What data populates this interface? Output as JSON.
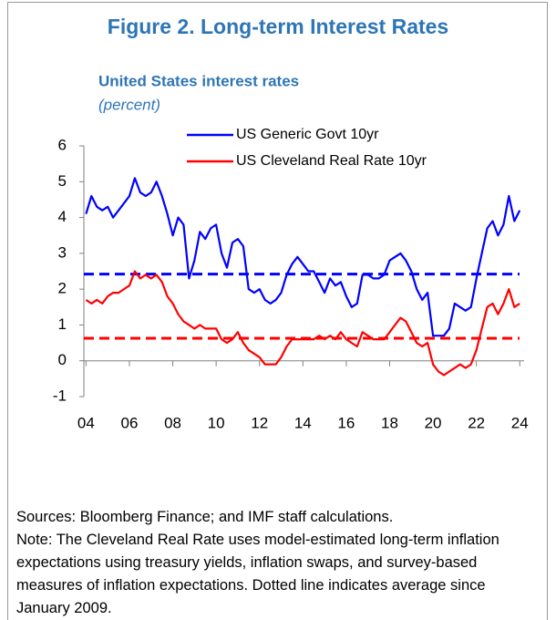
{
  "chart_data": {
    "type": "line",
    "title": "Figure 2. Long-term Interest Rates",
    "subtitle": "United States interest rates",
    "unit": "(percent)",
    "x": [
      2004,
      2004.25,
      2004.5,
      2004.75,
      2005,
      2005.25,
      2005.5,
      2005.75,
      2006,
      2006.25,
      2006.5,
      2006.75,
      2007,
      2007.25,
      2007.5,
      2007.75,
      2008,
      2008.25,
      2008.5,
      2008.75,
      2009,
      2009.25,
      2009.5,
      2009.75,
      2010,
      2010.25,
      2010.5,
      2010.75,
      2011,
      2011.25,
      2011.5,
      2011.75,
      2012,
      2012.25,
      2012.5,
      2012.75,
      2013,
      2013.25,
      2013.5,
      2013.75,
      2014,
      2014.25,
      2014.5,
      2014.75,
      2015,
      2015.25,
      2015.5,
      2015.75,
      2016,
      2016.25,
      2016.5,
      2016.75,
      2017,
      2017.25,
      2017.5,
      2017.75,
      2018,
      2018.25,
      2018.5,
      2018.75,
      2019,
      2019.25,
      2019.5,
      2019.75,
      2020,
      2020.25,
      2020.5,
      2020.75,
      2021,
      2021.25,
      2021.5,
      2021.75,
      2022,
      2022.25,
      2022.5,
      2022.75,
      2023,
      2023.25,
      2023.5,
      2023.75,
      2024
    ],
    "series": [
      {
        "name": "US Generic Govt 10yr",
        "color": "#0000ff",
        "values": [
          4.1,
          4.6,
          4.3,
          4.2,
          4.3,
          4.0,
          4.2,
          4.4,
          4.6,
          5.1,
          4.7,
          4.6,
          4.7,
          5.0,
          4.6,
          4.1,
          3.5,
          4.0,
          3.8,
          2.3,
          2.8,
          3.6,
          3.4,
          3.7,
          3.8,
          3.0,
          2.6,
          3.3,
          3.4,
          3.2,
          2.0,
          1.9,
          2.0,
          1.7,
          1.6,
          1.7,
          1.9,
          2.4,
          2.7,
          2.9,
          2.7,
          2.5,
          2.5,
          2.2,
          1.9,
          2.3,
          2.1,
          2.2,
          1.8,
          1.5,
          1.6,
          2.4,
          2.4,
          2.3,
          2.3,
          2.4,
          2.8,
          2.9,
          3.0,
          2.8,
          2.5,
          2.0,
          1.7,
          1.9,
          0.7,
          0.7,
          0.7,
          0.9,
          1.6,
          1.5,
          1.4,
          1.5,
          2.3,
          3.0,
          3.7,
          3.9,
          3.5,
          3.8,
          4.6,
          3.9,
          4.2
        ]
      },
      {
        "name": "US Cleveland Real Rate 10yr",
        "color": "#ff0000",
        "values": [
          1.7,
          1.6,
          1.7,
          1.6,
          1.8,
          1.9,
          1.9,
          2.0,
          2.1,
          2.5,
          2.3,
          2.4,
          2.3,
          2.4,
          2.2,
          1.8,
          1.6,
          1.3,
          1.1,
          1.0,
          0.9,
          1.0,
          0.9,
          0.9,
          0.9,
          0.6,
          0.5,
          0.6,
          0.8,
          0.5,
          0.3,
          0.2,
          0.1,
          -0.1,
          -0.1,
          -0.1,
          0.1,
          0.4,
          0.6,
          0.6,
          0.6,
          0.6,
          0.6,
          0.7,
          0.6,
          0.7,
          0.6,
          0.8,
          0.6,
          0.5,
          0.4,
          0.8,
          0.7,
          0.6,
          0.6,
          0.6,
          0.8,
          1.0,
          1.2,
          1.1,
          0.8,
          0.5,
          0.4,
          0.5,
          -0.1,
          -0.3,
          -0.4,
          -0.3,
          -0.2,
          -0.1,
          -0.2,
          -0.1,
          0.3,
          0.9,
          1.5,
          1.6,
          1.3,
          1.6,
          2.0,
          1.5,
          1.6
        ]
      }
    ],
    "averages": [
      {
        "color": "#0000ff",
        "value": 2.42
      },
      {
        "color": "#ff0000",
        "value": 0.63
      }
    ],
    "xlim": [
      2003.9,
      2024.2
    ],
    "xticks": [
      {
        "value": 2004,
        "label": "04"
      },
      {
        "value": 2006,
        "label": "06"
      },
      {
        "value": 2008,
        "label": "08"
      },
      {
        "value": 2010,
        "label": "10"
      },
      {
        "value": 2012,
        "label": "12"
      },
      {
        "value": 2014,
        "label": "14"
      },
      {
        "value": 2016,
        "label": "16"
      },
      {
        "value": 2018,
        "label": "18"
      },
      {
        "value": 2020,
        "label": "20"
      },
      {
        "value": 2022,
        "label": "22"
      },
      {
        "value": 2024,
        "label": "24"
      }
    ],
    "ylim": [
      -1,
      6
    ],
    "yticks": [
      -1,
      0,
      1,
      2,
      3,
      4,
      5,
      6
    ],
    "sources": "Sources: Bloomberg Finance; and IMF staff calculations.",
    "note": "Note: The Cleveland Real Rate uses model-estimated long-term inflation expectations using treasury yields, inflation swaps, and survey-based measures of inflation expectations. Dotted line indicates average since January 2009."
  }
}
